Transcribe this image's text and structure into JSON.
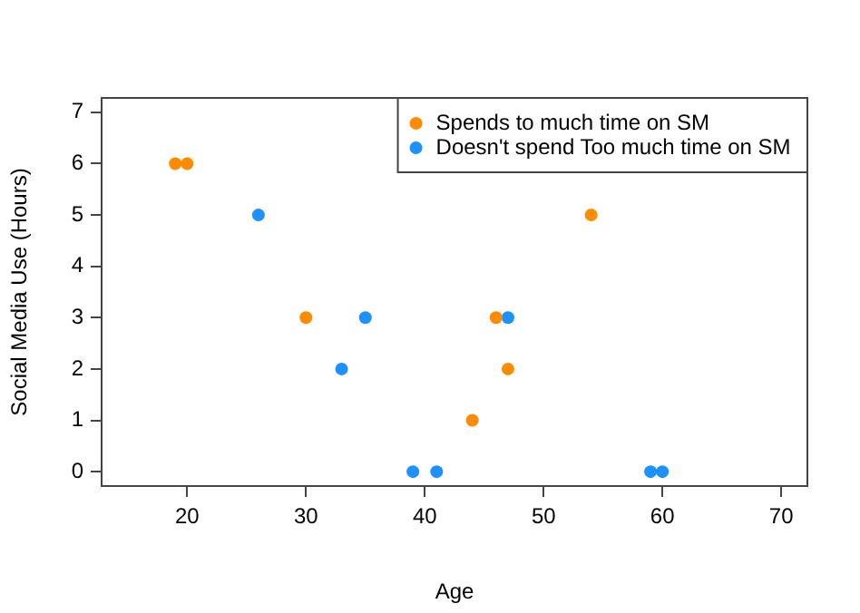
{
  "chart_data": {
    "type": "scatter",
    "xlabel": "Age",
    "ylabel": "Social Media Use (Hours)",
    "xlim": [
      12.8,
      72.2
    ],
    "xticks": [
      20,
      30,
      40,
      50,
      60,
      70
    ],
    "ylim": [
      -0.28,
      7.28
    ],
    "yticks": [
      0,
      1,
      2,
      3,
      4,
      5,
      6,
      7
    ],
    "grid": false,
    "legend": "top right",
    "marker": "circle",
    "series": [
      {
        "name": "Spends to much time on SM",
        "color": "#ff8c00",
        "x": [
          19,
          20,
          30,
          44,
          46,
          47,
          54
        ],
        "values": [
          6,
          6,
          3,
          1,
          3,
          2,
          5
        ]
      },
      {
        "name": "Doesn't spend Too much time on SM",
        "color": "#1e90ff",
        "x": [
          26,
          33,
          35,
          39,
          41,
          47,
          59,
          60
        ],
        "values": [
          5,
          2,
          3,
          0,
          0,
          3,
          0,
          0
        ]
      }
    ]
  }
}
